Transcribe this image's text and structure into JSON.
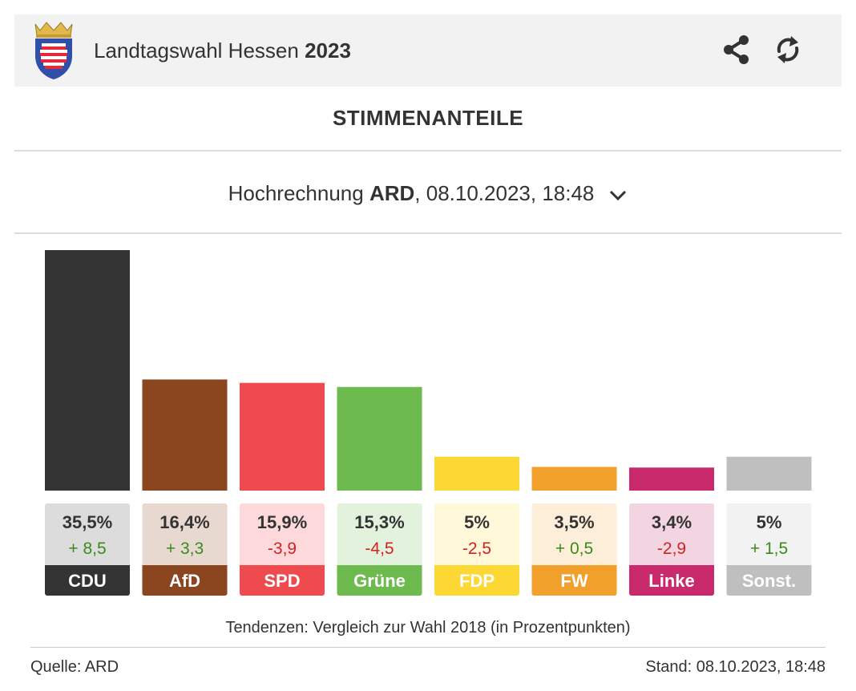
{
  "header": {
    "title_prefix": "Landtagswahl Hessen",
    "title_year": "2023",
    "crest_icon": "hessen-crest-icon",
    "share_icon": "share-icon",
    "reload_icon": "refresh-icon"
  },
  "section_title": "STIMMENANTEILE",
  "selector": {
    "prefix": "Hochrechnung",
    "source": "ARD",
    "suffix": ", 08.10.2023, 18:48",
    "icon": "chevron-down-icon"
  },
  "chart_data": {
    "type": "bar",
    "categories": [
      "CDU",
      "AfD",
      "SPD",
      "Grüne",
      "FDP",
      "FW",
      "Linke",
      "Sonst."
    ],
    "values": [
      35.5,
      16.4,
      15.9,
      15.3,
      5,
      3.5,
      3.4,
      5
    ],
    "value_labels": [
      "35,5%",
      "16,4%",
      "15,9%",
      "15,3%",
      "5%",
      "3,5%",
      "3,4%",
      "5%"
    ],
    "changes": [
      8.5,
      3.3,
      -3.9,
      -4.5,
      -2.5,
      0.5,
      -2.9,
      1.5
    ],
    "change_labels": [
      "+ 8,5",
      "+ 3,3",
      "-3,9",
      "-4,5",
      "-2,5",
      "+ 0,5",
      "-2,9",
      "+ 1,5"
    ],
    "colors": [
      "#333333",
      "#8b451f",
      "#ef4a4e",
      "#6dbb4e",
      "#fdd835",
      "#f2a02c",
      "#c92a6b",
      "#bfbfbf"
    ],
    "box_colors": [
      "#dcdcdc",
      "#e8d9d0",
      "#fdd9db",
      "#e3f2dc",
      "#fff8d9",
      "#fdeed9",
      "#f3d4e1",
      "#f2f2f2"
    ],
    "positive_color": "#3a8a1c",
    "negative_color": "#d32222",
    "ylim": [
      0,
      35.5
    ]
  },
  "footnote": "Tendenzen: Vergleich zur Wahl 2018 (in Prozentpunkten)",
  "footer": {
    "source": "Quelle: ARD",
    "stand": "Stand: 08.10.2023, 18:48"
  }
}
